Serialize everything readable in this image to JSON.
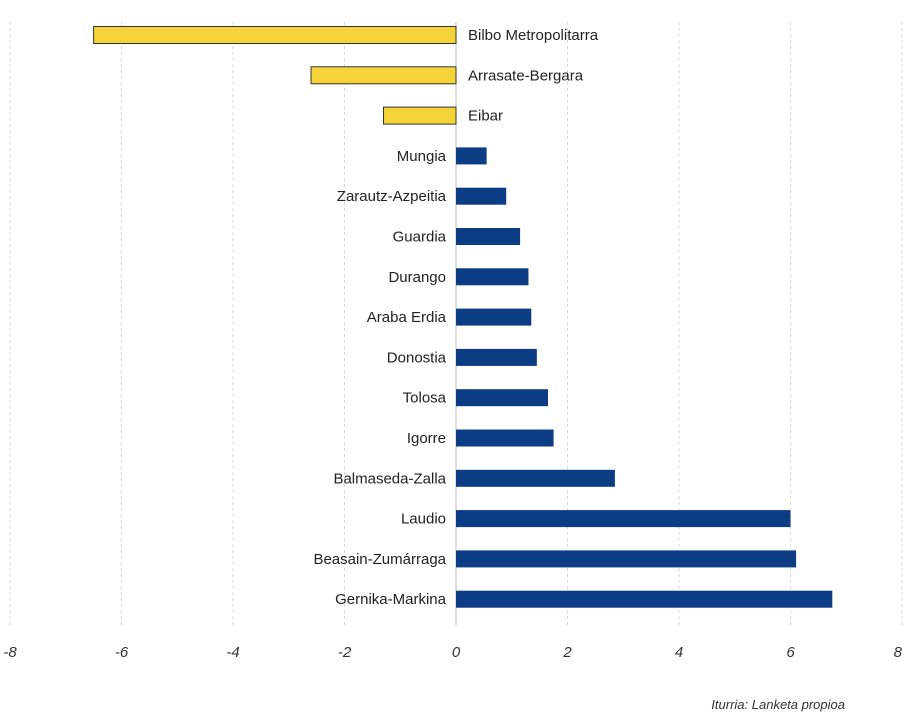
{
  "chart_data": {
    "type": "bar",
    "orientation": "horizontal",
    "categories": [
      "Bilbo Metropolitarra",
      "Arrasate-Bergara",
      "Eibar",
      "Mungia",
      "Zarautz-Azpeitia",
      "Guardia",
      "Durango",
      "Araba Erdia",
      "Donostia",
      "Tolosa",
      "Igorre",
      "Balmaseda-Zalla",
      "Laudio",
      "Beasain-Zumárraga",
      "Gernika-Markina"
    ],
    "values": [
      -6.5,
      -2.6,
      -1.3,
      0.55,
      0.9,
      1.15,
      1.3,
      1.35,
      1.45,
      1.65,
      1.75,
      2.85,
      6.0,
      6.1,
      6.75
    ],
    "xlim": [
      -8,
      8
    ],
    "xticks": [
      -8,
      -6,
      -4,
      -2,
      0,
      2,
      4,
      6,
      8
    ],
    "xtick_labels": [
      "-8",
      "-6",
      "-4",
      "-2",
      "0",
      "2",
      "4",
      "6",
      "8"
    ],
    "grid": true,
    "legend": "none",
    "colors": {
      "negative": "#f5d43a",
      "positive": "#0b3c84",
      "negative_border": "#333333"
    },
    "title": "",
    "xlabel": "",
    "ylabel": ""
  },
  "source_text": "Iturria: Lanketa propioa"
}
